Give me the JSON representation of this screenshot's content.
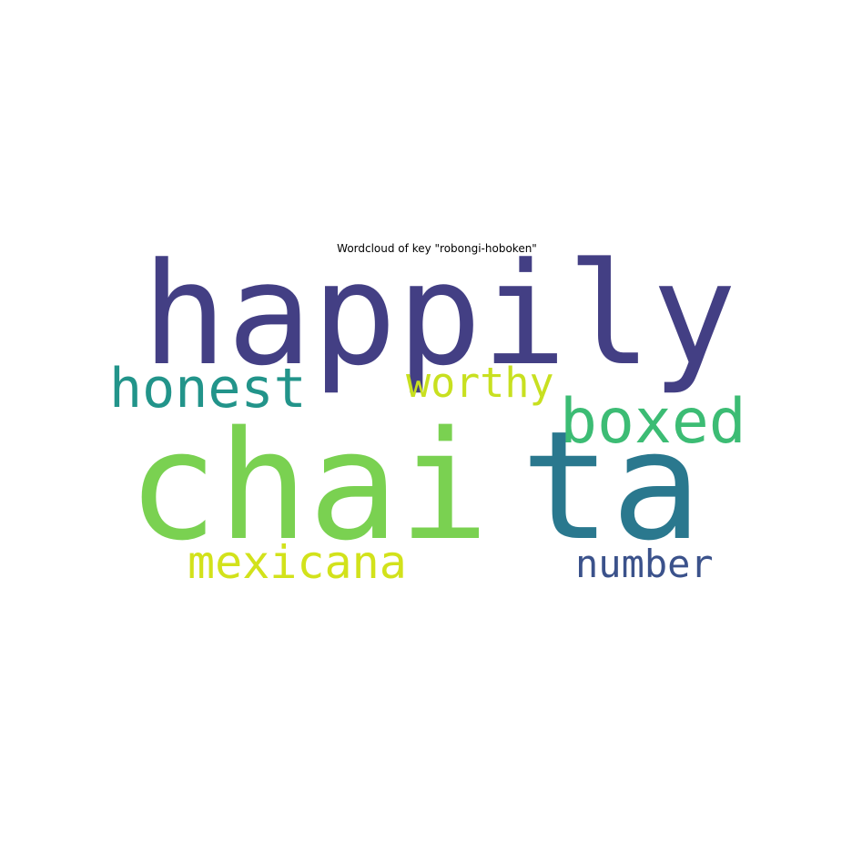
{
  "title": "Wordcloud of key \"robongi-hoboken\"",
  "words": [
    {
      "id": "happily",
      "text": "happily",
      "color": "#433f84"
    },
    {
      "id": "honest",
      "text": "honest",
      "color": "#22948a"
    },
    {
      "id": "worthy",
      "text": "worthy",
      "color": "#c8e020"
    },
    {
      "id": "boxed",
      "text": "boxed",
      "color": "#3cbc74"
    },
    {
      "id": "chai",
      "text": "chai",
      "color": "#7ad151"
    },
    {
      "id": "ta",
      "text": "ta",
      "color": "#2a788e"
    },
    {
      "id": "mexicana",
      "text": "mexicana",
      "color": "#d2e21b"
    },
    {
      "id": "number",
      "text": "number",
      "color": "#3b528b"
    }
  ]
}
